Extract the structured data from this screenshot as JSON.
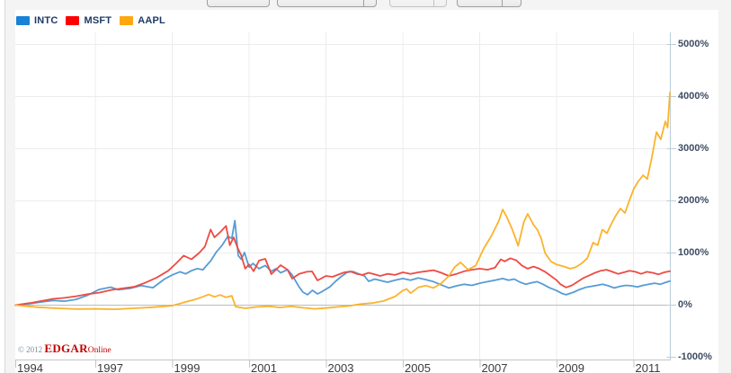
{
  "toolbar": {
    "controls": [
      {
        "name": "toolbar-button-1",
        "type": "button",
        "label": ""
      },
      {
        "name": "toolbar-dropdown-1",
        "type": "dropdown",
        "label": ""
      },
      {
        "name": "toolbar-spinner",
        "type": "split-control",
        "label": ""
      },
      {
        "name": "toolbar-dropdown-2",
        "type": "dropdown",
        "label": ""
      }
    ]
  },
  "footer": {
    "copyright_prefix": "© 2012 ",
    "brand": "EDGAR",
    "brand_suffix": "Online"
  },
  "chart_data": {
    "type": "line",
    "title": "",
    "xlabel": "",
    "ylabel": "",
    "grid": true,
    "legend_position": "top-left",
    "x_axis": {
      "labels": [
        "1994",
        "1997",
        "1999",
        "2001",
        "2003",
        "2005",
        "2007",
        "2009",
        "2011"
      ],
      "label_years": [
        1994,
        1997,
        1999,
        2001,
        2003,
        2005,
        2007,
        2009,
        2011
      ],
      "gridline_years": [
        1997,
        1999,
        2001,
        2003,
        2005,
        2007,
        2009,
        2011
      ],
      "range_years": [
        1994.92,
        2011.95
      ]
    },
    "y_axis": {
      "unit": "% change since start",
      "tick_labels": [
        "5000%",
        "4000%",
        "3000%",
        "2000%",
        "1000%",
        "0%",
        "-1000%"
      ],
      "ticks_pct": [
        5000,
        4000,
        3000,
        2000,
        1000,
        0,
        -1000
      ],
      "ylim": [
        -1000,
        5000
      ]
    },
    "zero_line_color": "#b4bec7",
    "grid_color": "#ececec",
    "axis_color": "#c4c4c4",
    "right_border_color": "#b9cdda",
    "series": [
      {
        "name": "INTC",
        "legend_color": "#1782d6",
        "line_color": "#569cd6",
        "points": [
          [
            1994.92,
            0
          ],
          [
            1995.3,
            30
          ],
          [
            1995.6,
            60
          ],
          [
            1995.9,
            90
          ],
          [
            1996.2,
            75
          ],
          [
            1996.5,
            110
          ],
          [
            1996.8,
            190
          ],
          [
            1997.1,
            300
          ],
          [
            1997.4,
            345
          ],
          [
            1997.6,
            295
          ],
          [
            1997.9,
            320
          ],
          [
            1998.2,
            375
          ],
          [
            1998.5,
            335
          ],
          [
            1998.8,
            500
          ],
          [
            1999.0,
            580
          ],
          [
            1999.2,
            640
          ],
          [
            1999.35,
            600
          ],
          [
            1999.5,
            660
          ],
          [
            1999.65,
            700
          ],
          [
            1999.8,
            680
          ],
          [
            2000.0,
            850
          ],
          [
            2000.15,
            1020
          ],
          [
            2000.3,
            1150
          ],
          [
            2000.45,
            1320
          ],
          [
            2000.55,
            1280
          ],
          [
            2000.63,
            1620
          ],
          [
            2000.72,
            950
          ],
          [
            2000.8,
            880
          ],
          [
            2000.88,
            1010
          ],
          [
            2001.0,
            730
          ],
          [
            2001.1,
            800
          ],
          [
            2001.26,
            700
          ],
          [
            2001.42,
            760
          ],
          [
            2001.58,
            650
          ],
          [
            2001.7,
            700
          ],
          [
            2001.82,
            620
          ],
          [
            2002.0,
            680
          ],
          [
            2002.12,
            580
          ],
          [
            2002.3,
            350
          ],
          [
            2002.4,
            250
          ],
          [
            2002.52,
            200
          ],
          [
            2002.65,
            284
          ],
          [
            2002.78,
            216
          ],
          [
            2002.9,
            260
          ],
          [
            2003.1,
            350
          ],
          [
            2003.25,
            457
          ],
          [
            2003.4,
            550
          ],
          [
            2003.55,
            630
          ],
          [
            2003.7,
            645
          ],
          [
            2003.85,
            600
          ],
          [
            2004.0,
            560
          ],
          [
            2004.11,
            457
          ],
          [
            2004.27,
            500
          ],
          [
            2004.41,
            474
          ],
          [
            2004.6,
            440
          ],
          [
            2004.8,
            480
          ],
          [
            2005.0,
            510
          ],
          [
            2005.2,
            480
          ],
          [
            2005.4,
            520
          ],
          [
            2005.6,
            490
          ],
          [
            2005.8,
            450
          ],
          [
            2006.0,
            390
          ],
          [
            2006.2,
            330
          ],
          [
            2006.4,
            370
          ],
          [
            2006.6,
            400
          ],
          [
            2006.8,
            380
          ],
          [
            2007.0,
            420
          ],
          [
            2007.2,
            450
          ],
          [
            2007.4,
            480
          ],
          [
            2007.6,
            510
          ],
          [
            2007.75,
            480
          ],
          [
            2007.9,
            500
          ],
          [
            2008.05,
            440
          ],
          [
            2008.2,
            400
          ],
          [
            2008.35,
            430
          ],
          [
            2008.5,
            450
          ],
          [
            2008.65,
            400
          ],
          [
            2008.8,
            340
          ],
          [
            2009.0,
            280
          ],
          [
            2009.15,
            220
          ],
          [
            2009.25,
            200
          ],
          [
            2009.45,
            250
          ],
          [
            2009.6,
            300
          ],
          [
            2009.75,
            340
          ],
          [
            2009.9,
            360
          ],
          [
            2010.05,
            380
          ],
          [
            2010.2,
            400
          ],
          [
            2010.35,
            370
          ],
          [
            2010.5,
            330
          ],
          [
            2010.65,
            360
          ],
          [
            2010.8,
            380
          ],
          [
            2010.95,
            370
          ],
          [
            2011.1,
            350
          ],
          [
            2011.25,
            380
          ],
          [
            2011.4,
            400
          ],
          [
            2011.55,
            420
          ],
          [
            2011.7,
            400
          ],
          [
            2011.85,
            440
          ],
          [
            2011.95,
            460
          ]
        ]
      },
      {
        "name": "MSFT",
        "legend_color": "#fe0000",
        "line_color": "#ee4b43",
        "points": [
          [
            1994.92,
            0
          ],
          [
            1995.3,
            40
          ],
          [
            1995.6,
            80
          ],
          [
            1995.9,
            120
          ],
          [
            1996.2,
            140
          ],
          [
            1996.5,
            170
          ],
          [
            1996.8,
            210
          ],
          [
            1997.1,
            240
          ],
          [
            1997.4,
            290
          ],
          [
            1997.7,
            320
          ],
          [
            1998.0,
            350
          ],
          [
            1998.3,
            430
          ],
          [
            1998.6,
            530
          ],
          [
            1998.9,
            660
          ],
          [
            1999.1,
            800
          ],
          [
            1999.3,
            950
          ],
          [
            1999.5,
            880
          ],
          [
            1999.7,
            1000
          ],
          [
            1999.85,
            1120
          ],
          [
            2000.0,
            1450
          ],
          [
            2000.1,
            1300
          ],
          [
            2000.25,
            1400
          ],
          [
            2000.4,
            1520
          ],
          [
            2000.5,
            1150
          ],
          [
            2000.6,
            1300
          ],
          [
            2000.7,
            1100
          ],
          [
            2000.8,
            950
          ],
          [
            2000.9,
            700
          ],
          [
            2001.0,
            780
          ],
          [
            2001.12,
            650
          ],
          [
            2001.26,
            855
          ],
          [
            2001.42,
            888
          ],
          [
            2001.58,
            595
          ],
          [
            2001.7,
            680
          ],
          [
            2001.82,
            767
          ],
          [
            2002.0,
            680
          ],
          [
            2002.12,
            509
          ],
          [
            2002.3,
            600
          ],
          [
            2002.5,
            640
          ],
          [
            2002.64,
            647
          ],
          [
            2002.78,
            474
          ],
          [
            2002.9,
            520
          ],
          [
            2003.0,
            560
          ],
          [
            2003.17,
            543
          ],
          [
            2003.3,
            580
          ],
          [
            2003.48,
            629
          ],
          [
            2003.64,
            647
          ],
          [
            2003.8,
            600
          ],
          [
            2003.95,
            580
          ],
          [
            2004.11,
            620
          ],
          [
            2004.27,
            590
          ],
          [
            2004.41,
            560
          ],
          [
            2004.6,
            600
          ],
          [
            2004.8,
            580
          ],
          [
            2005.0,
            630
          ],
          [
            2005.2,
            600
          ],
          [
            2005.4,
            630
          ],
          [
            2005.6,
            650
          ],
          [
            2005.8,
            670
          ],
          [
            2006.0,
            620
          ],
          [
            2006.2,
            560
          ],
          [
            2006.4,
            600
          ],
          [
            2006.6,
            650
          ],
          [
            2006.8,
            680
          ],
          [
            2007.0,
            700
          ],
          [
            2007.2,
            680
          ],
          [
            2007.4,
            720
          ],
          [
            2007.55,
            880
          ],
          [
            2007.65,
            840
          ],
          [
            2007.8,
            900
          ],
          [
            2007.95,
            860
          ],
          [
            2008.1,
            760
          ],
          [
            2008.25,
            700
          ],
          [
            2008.4,
            740
          ],
          [
            2008.55,
            700
          ],
          [
            2008.7,
            640
          ],
          [
            2008.85,
            560
          ],
          [
            2009.0,
            480
          ],
          [
            2009.1,
            400
          ],
          [
            2009.25,
            340
          ],
          [
            2009.4,
            380
          ],
          [
            2009.55,
            450
          ],
          [
            2009.7,
            520
          ],
          [
            2009.85,
            570
          ],
          [
            2010.0,
            620
          ],
          [
            2010.15,
            660
          ],
          [
            2010.3,
            680
          ],
          [
            2010.45,
            640
          ],
          [
            2010.6,
            600
          ],
          [
            2010.75,
            630
          ],
          [
            2010.9,
            660
          ],
          [
            2011.05,
            640
          ],
          [
            2011.2,
            600
          ],
          [
            2011.35,
            640
          ],
          [
            2011.5,
            620
          ],
          [
            2011.65,
            590
          ],
          [
            2011.8,
            630
          ],
          [
            2011.95,
            650
          ]
        ]
      },
      {
        "name": "AAPL",
        "legend_color": "#ffa70f",
        "line_color": "#fbb32c",
        "points": [
          [
            1994.92,
            0
          ],
          [
            1995.5,
            -40
          ],
          [
            1996.0,
            -60
          ],
          [
            1996.5,
            -75
          ],
          [
            1997.0,
            -70
          ],
          [
            1997.5,
            -80
          ],
          [
            1998.0,
            -60
          ],
          [
            1998.5,
            -40
          ],
          [
            1999.0,
            -10
          ],
          [
            1999.2,
            30
          ],
          [
            1999.4,
            70
          ],
          [
            1999.6,
            110
          ],
          [
            1999.8,
            160
          ],
          [
            1999.95,
            205
          ],
          [
            2000.1,
            160
          ],
          [
            2000.25,
            195
          ],
          [
            2000.4,
            150
          ],
          [
            2000.55,
            180
          ],
          [
            2000.65,
            -30
          ],
          [
            2000.9,
            -60
          ],
          [
            2001.2,
            -35
          ],
          [
            2001.5,
            -20
          ],
          [
            2001.8,
            -45
          ],
          [
            2002.1,
            -25
          ],
          [
            2002.4,
            -50
          ],
          [
            2002.7,
            -70
          ],
          [
            2003.0,
            -55
          ],
          [
            2003.3,
            -35
          ],
          [
            2003.6,
            -15
          ],
          [
            2003.9,
            20
          ],
          [
            2004.2,
            40
          ],
          [
            2004.5,
            80
          ],
          [
            2004.8,
            165
          ],
          [
            2005.0,
            280
          ],
          [
            2005.1,
            310
          ],
          [
            2005.2,
            230
          ],
          [
            2005.4,
            340
          ],
          [
            2005.6,
            375
          ],
          [
            2005.8,
            330
          ],
          [
            2006.0,
            420
          ],
          [
            2006.2,
            560
          ],
          [
            2006.35,
            730
          ],
          [
            2006.5,
            820
          ],
          [
            2006.7,
            680
          ],
          [
            2006.9,
            760
          ],
          [
            2007.1,
            1080
          ],
          [
            2007.3,
            1320
          ],
          [
            2007.5,
            1620
          ],
          [
            2007.6,
            1835
          ],
          [
            2007.7,
            1700
          ],
          [
            2007.85,
            1450
          ],
          [
            2008.0,
            1140
          ],
          [
            2008.15,
            1600
          ],
          [
            2008.25,
            1750
          ],
          [
            2008.4,
            1540
          ],
          [
            2008.5,
            1450
          ],
          [
            2008.6,
            1280
          ],
          [
            2008.7,
            1000
          ],
          [
            2008.85,
            840
          ],
          [
            2009.0,
            780
          ],
          [
            2009.2,
            740
          ],
          [
            2009.35,
            700
          ],
          [
            2009.5,
            730
          ],
          [
            2009.65,
            800
          ],
          [
            2009.8,
            900
          ],
          [
            2009.95,
            1200
          ],
          [
            2010.07,
            1150
          ],
          [
            2010.19,
            1450
          ],
          [
            2010.31,
            1380
          ],
          [
            2010.42,
            1550
          ],
          [
            2010.54,
            1716
          ],
          [
            2010.66,
            1853
          ],
          [
            2010.78,
            1767
          ],
          [
            2010.89,
            2000
          ],
          [
            2011.01,
            2233
          ],
          [
            2011.13,
            2380
          ],
          [
            2011.25,
            2491
          ],
          [
            2011.36,
            2420
          ],
          [
            2011.48,
            2836
          ],
          [
            2011.6,
            3319
          ],
          [
            2011.71,
            3181
          ],
          [
            2011.83,
            3526
          ],
          [
            2011.89,
            3405
          ],
          [
            2011.95,
            4078
          ]
        ]
      }
    ]
  }
}
